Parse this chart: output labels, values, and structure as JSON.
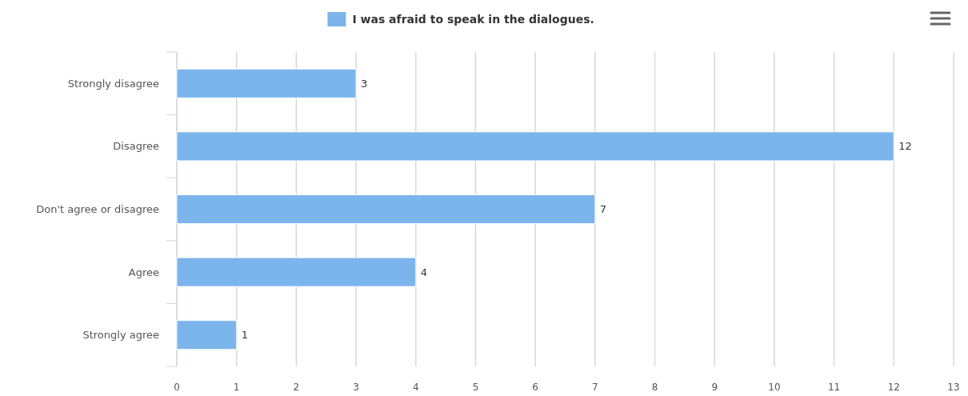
{
  "chart_data": {
    "type": "bar",
    "orientation": "horizontal",
    "categories": [
      "Strongly disagree",
      "Disagree",
      "Don't agree or disagree",
      "Agree",
      "Strongly agree"
    ],
    "series": [
      {
        "name": "I was afraid to speak in the dialogues.",
        "color": "#7cb5ec",
        "values": [
          3,
          12,
          7,
          4,
          1
        ]
      }
    ],
    "xlim": [
      0,
      13
    ],
    "xticks": [
      0,
      1,
      2,
      3,
      4,
      5,
      6,
      7,
      8,
      9,
      10,
      11,
      12,
      13
    ],
    "grid": "x",
    "legend": "top",
    "data_labels": true
  }
}
